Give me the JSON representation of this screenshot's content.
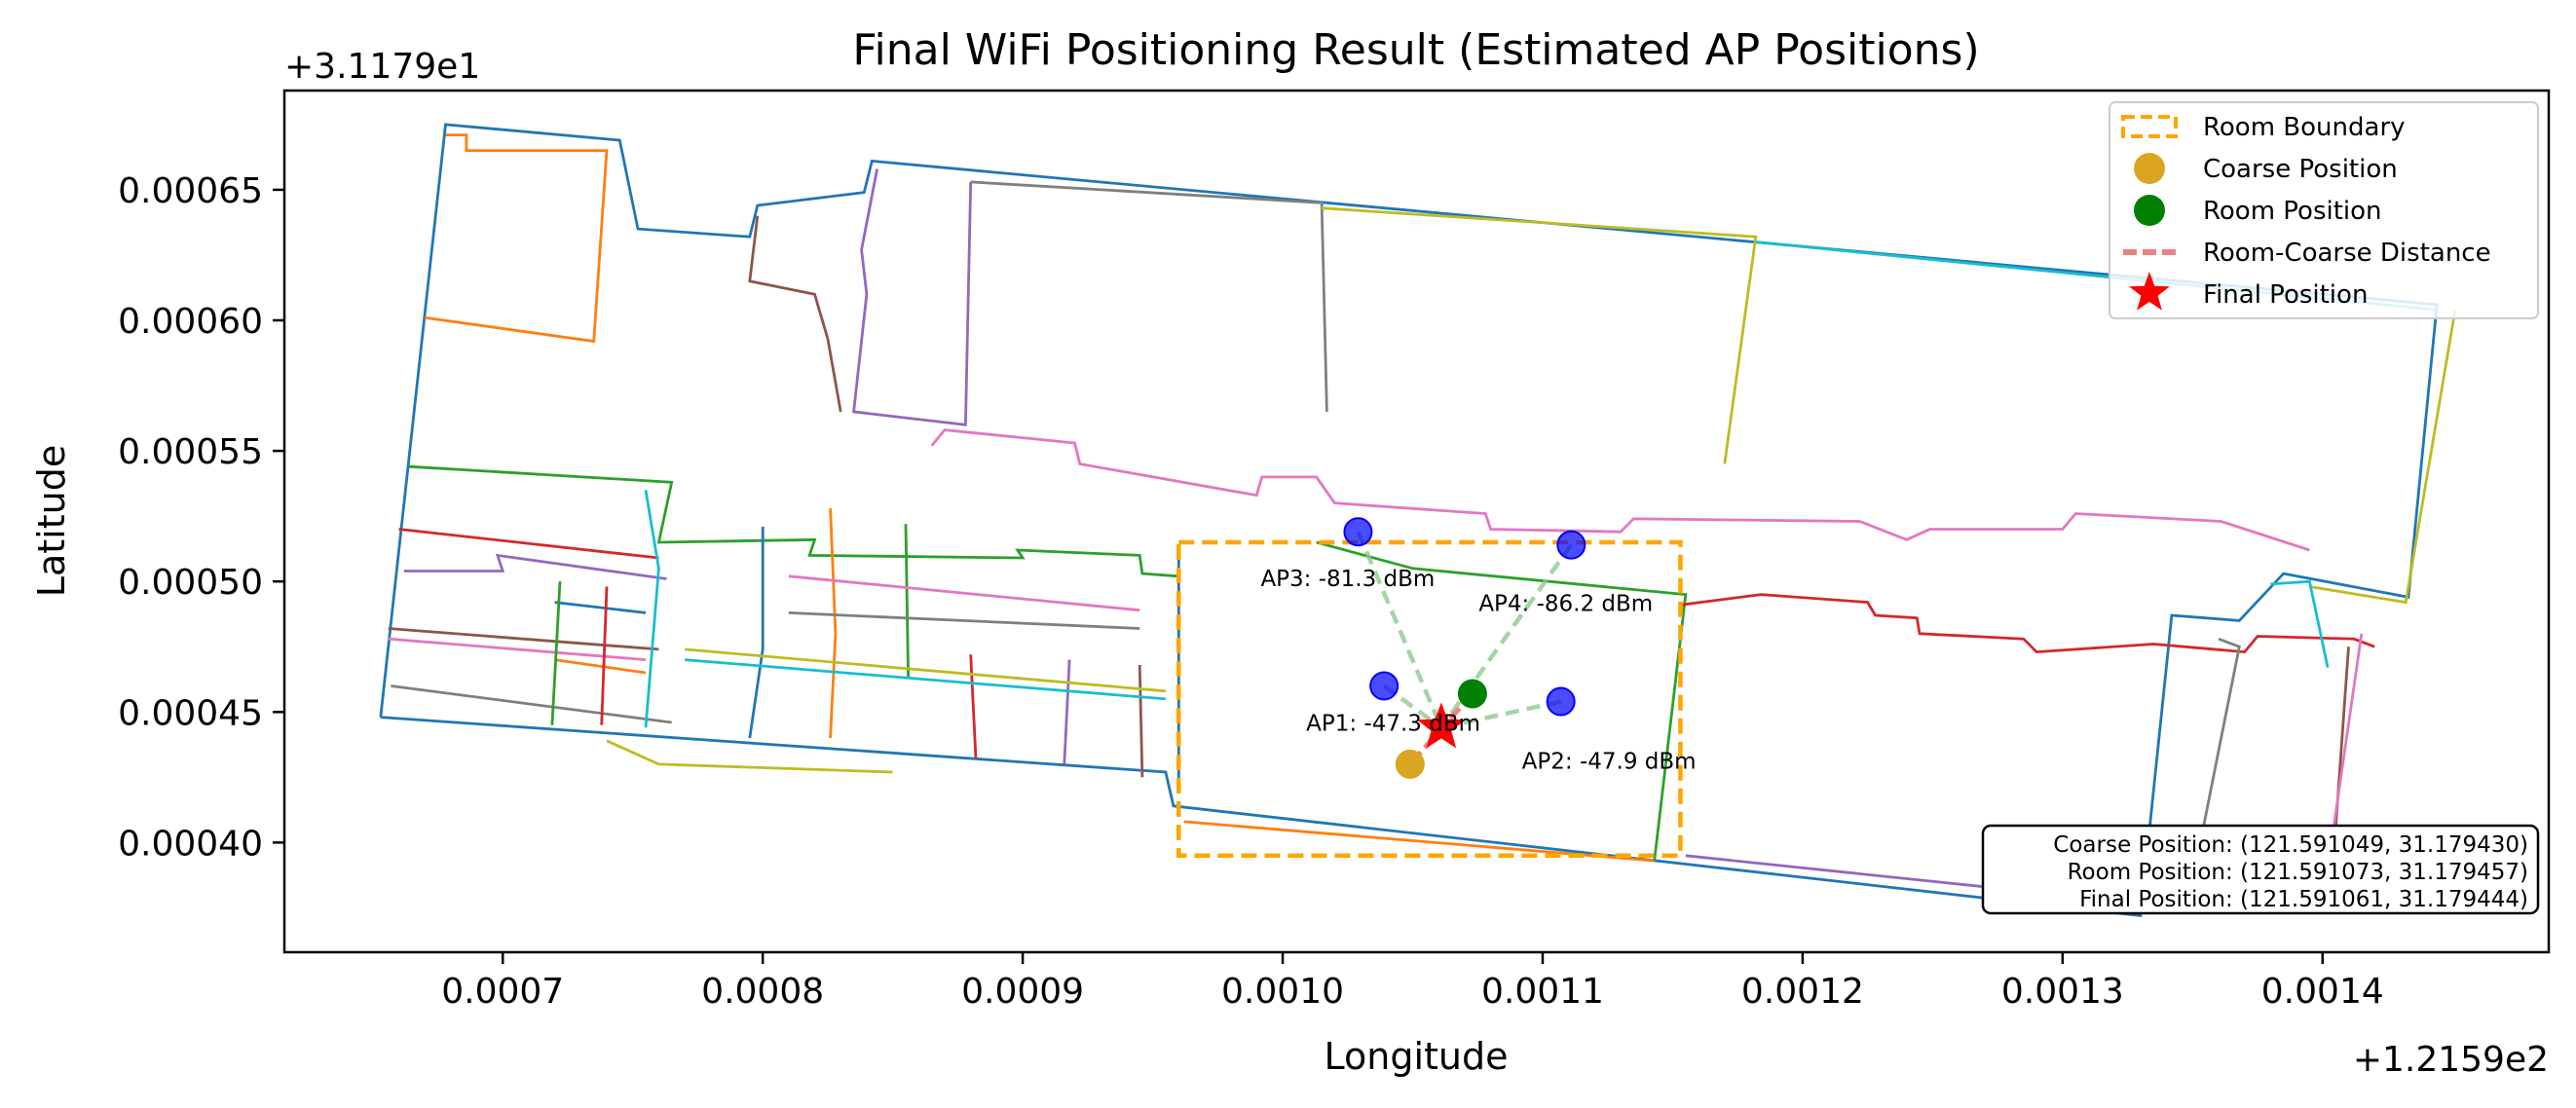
{
  "chart_data": {
    "type": "scatter",
    "title": "Final WiFi Positioning Result (Estimated AP Positions)",
    "xlabel": "Longitude",
    "ylabel": "Latitude",
    "x_offset_label": "+1.2159e2",
    "y_offset_label": "+3.1179e1",
    "x_offset": 121.59,
    "y_offset": 31.179,
    "xlim": [
      0.000616,
      0.001487
    ],
    "ylim": [
      0.000358,
      0.000688
    ],
    "x_ticks": [
      0.0007,
      0.0008,
      0.0009,
      0.001,
      0.0011,
      0.0012,
      0.0013,
      0.0014
    ],
    "x_tick_labels": [
      "0.0007",
      "0.0008",
      "0.0009",
      "0.0010",
      "0.0011",
      "0.0012",
      "0.0013",
      "0.0014"
    ],
    "y_ticks": [
      0.0004,
      0.00045,
      0.0005,
      0.00055,
      0.0006,
      0.00065
    ],
    "y_tick_labels": [
      "0.00040",
      "0.00045",
      "0.00050",
      "0.00055",
      "0.00060",
      "0.00065"
    ],
    "grid": false,
    "legend_position": "top-right",
    "legend": [
      {
        "label": "Room Boundary",
        "marker": "dashed-rect",
        "color": "#FFA500"
      },
      {
        "label": "Coarse Position",
        "marker": "circle",
        "color": "#DAA520"
      },
      {
        "label": "Room Position",
        "marker": "circle",
        "color": "#008000"
      },
      {
        "label": "Room-Coarse Distance",
        "marker": "dashed-line",
        "color": "#F08080"
      },
      {
        "label": "Final Position",
        "marker": "star",
        "color": "#FF0000"
      }
    ],
    "room_boundary": {
      "x": [
        0.00096,
        0.001153
      ],
      "y": [
        0.000395,
        0.000515
      ],
      "color": "#FFA500"
    },
    "coarse_position": {
      "x": 0.001049,
      "y": 0.00043,
      "color": "#DAA520"
    },
    "room_position": {
      "x": 0.001073,
      "y": 0.000457,
      "color": "#008000"
    },
    "final_position": {
      "x": 0.001061,
      "y": 0.000444,
      "color": "#FF0000"
    },
    "access_points": [
      {
        "label": "AP1: -47.3 dBm",
        "x": 0.001039,
        "y": 0.00046
      },
      {
        "label": "AP2: -47.9 dBm",
        "x": 0.001107,
        "y": 0.000454
      },
      {
        "label": "AP3: -81.3 dBm",
        "x": 0.001029,
        "y": 0.000519
      },
      {
        "label": "AP4: -86.2 dBm",
        "x": 0.001111,
        "y": 0.000514
      }
    ],
    "ap_color": "#0000FF",
    "ap_link_color": "#8FC98F",
    "info_box": [
      "Coarse Position: (121.591049, 31.179430)",
      "Room Position: (121.591073, 31.179457)",
      "Final Position: (121.591061, 31.179444)"
    ],
    "floorplan_colors": [
      "#1f77b4",
      "#ff7f0e",
      "#2ca02c",
      "#d62728",
      "#9467bd",
      "#8c564b",
      "#e377c2",
      "#7f7f7f",
      "#bcbd22",
      "#17becf"
    ],
    "floorplan": [
      {
        "points": [
          [
            0.000653,
            0.000448
          ],
          [
            0.000678,
            0.000675
          ],
          [
            0.000745,
            0.000669
          ],
          [
            0.000752,
            0.000635
          ],
          [
            0.000795,
            0.000632
          ],
          [
            0.000798,
            0.000644
          ],
          [
            0.000839,
            0.000649
          ],
          [
            0.000842,
            0.000661
          ],
          [
            0.001444,
            0.000606
          ],
          [
            0.001433,
            0.000494
          ],
          [
            0.001385,
            0.000503
          ],
          [
            0.001368,
            0.000485
          ],
          [
            0.001342,
            0.000487
          ],
          [
            0.00133,
            0.000372
          ],
          [
            0.000958,
            0.000414
          ],
          [
            0.000955,
            0.000427
          ],
          [
            0.000653,
            0.000448
          ]
        ]
      },
      {
        "points": [
          [
            0.000678,
            0.000671
          ],
          [
            0.000686,
            0.000671
          ],
          [
            0.000686,
            0.000665
          ],
          [
            0.00074,
            0.000665
          ],
          [
            0.000735,
            0.000592
          ],
          [
            0.00067,
            0.000601
          ]
        ]
      },
      {
        "points": [
          [
            0.000664,
            0.000544
          ],
          [
            0.000765,
            0.000538
          ],
          [
            0.00076,
            0.000515
          ],
          [
            0.00082,
            0.000516
          ],
          [
            0.000818,
            0.00051
          ],
          [
            0.0009,
            0.000509
          ],
          [
            0.000898,
            0.000512
          ],
          [
            0.000945,
            0.00051
          ],
          [
            0.000946,
            0.000503
          ],
          [
            0.00096,
            0.000502
          ]
        ]
      },
      {
        "points": [
          [
            0.00066,
            0.00052
          ],
          [
            0.00076,
            0.000509
          ]
        ]
      },
      {
        "points": [
          [
            0.000662,
            0.000504
          ],
          [
            0.0007,
            0.000504
          ],
          [
            0.000698,
            0.00051
          ],
          [
            0.000763,
            0.000501
          ]
        ]
      },
      {
        "points": [
          [
            0.000656,
            0.000482
          ],
          [
            0.00076,
            0.000474
          ]
        ]
      },
      {
        "points": [
          [
            0.000656,
            0.000478
          ],
          [
            0.000755,
            0.00047
          ]
        ]
      },
      {
        "points": [
          [
            0.000657,
            0.00046
          ],
          [
            0.000765,
            0.000446
          ]
        ]
      },
      {
        "points": [
          [
            0.00074,
            0.000439
          ],
          [
            0.00076,
            0.00043
          ],
          [
            0.00085,
            0.000427
          ]
        ]
      },
      {
        "points": [
          [
            0.000755,
            0.000535
          ],
          [
            0.00076,
            0.000505
          ],
          [
            0.000755,
            0.000444
          ]
        ]
      },
      {
        "points": [
          [
            0.0008,
            0.000521
          ],
          [
            0.0008,
            0.000474
          ],
          [
            0.000795,
            0.00044
          ]
        ]
      },
      {
        "points": [
          [
            0.000826,
            0.000528
          ],
          [
            0.000828,
            0.00048
          ],
          [
            0.000826,
            0.00044
          ]
        ]
      },
      {
        "points": [
          [
            0.000855,
            0.000522
          ],
          [
            0.000856,
            0.000463
          ]
        ]
      },
      {
        "points": [
          [
            0.00088,
            0.000472
          ],
          [
            0.000882,
            0.000432
          ]
        ]
      },
      {
        "points": [
          [
            0.000918,
            0.00047
          ],
          [
            0.000916,
            0.00043
          ]
        ]
      },
      {
        "points": [
          [
            0.000945,
            0.000468
          ],
          [
            0.000946,
            0.000425
          ]
        ]
      },
      {
        "points": [
          [
            0.00081,
            0.000502
          ],
          [
            0.000945,
            0.000489
          ]
        ]
      },
      {
        "points": [
          [
            0.00081,
            0.000488
          ],
          [
            0.000945,
            0.000482
          ]
        ]
      },
      {
        "points": [
          [
            0.00077,
            0.000474
          ],
          [
            0.000955,
            0.000458
          ]
        ]
      },
      {
        "points": [
          [
            0.00077,
            0.00047
          ],
          [
            0.000955,
            0.000455
          ]
        ]
      },
      {
        "points": [
          [
            0.00072,
            0.000492
          ],
          [
            0.000755,
            0.000488
          ]
        ]
      },
      {
        "points": [
          [
            0.00072,
            0.00047
          ],
          [
            0.000755,
            0.000465
          ]
        ]
      },
      {
        "points": [
          [
            0.000719,
            0.000445
          ],
          [
            0.000722,
            0.0005
          ]
        ]
      },
      {
        "points": [
          [
            0.000738,
            0.000445
          ],
          [
            0.00074,
            0.000498
          ]
        ]
      },
      {
        "points": [
          [
            0.000844,
            0.000658
          ],
          [
            0.000838,
            0.000627
          ],
          [
            0.00084,
            0.00061
          ],
          [
            0.000835,
            0.000565
          ],
          [
            0.000878,
            0.00056
          ],
          [
            0.00088,
            0.000653
          ]
        ]
      },
      {
        "points": [
          [
            0.000798,
            0.00064
          ],
          [
            0.000795,
            0.000615
          ],
          [
            0.00082,
            0.00061
          ],
          [
            0.000825,
            0.000593
          ],
          [
            0.00083,
            0.000565
          ]
        ]
      },
      {
        "points": [
          [
            0.000865,
            0.000552
          ],
          [
            0.00087,
            0.000558
          ],
          [
            0.00092,
            0.000553
          ],
          [
            0.000922,
            0.000545
          ],
          [
            0.00099,
            0.000533
          ],
          [
            0.000992,
            0.00054
          ],
          [
            0.001013,
            0.00054
          ],
          [
            0.00102,
            0.00053
          ],
          [
            0.001078,
            0.000526
          ],
          [
            0.00108,
            0.00052
          ],
          [
            0.00113,
            0.000519
          ],
          [
            0.001135,
            0.000524
          ],
          [
            0.001222,
            0.000523
          ],
          [
            0.00124,
            0.000516
          ],
          [
            0.001249,
            0.00052
          ],
          [
            0.0013,
            0.00052
          ],
          [
            0.001305,
            0.000526
          ],
          [
            0.001361,
            0.000523
          ],
          [
            0.001395,
            0.000512
          ]
        ]
      },
      {
        "points": [
          [
            0.00088,
            0.000653
          ],
          [
            0.001015,
            0.000645
          ],
          [
            0.001017,
            0.000565
          ]
        ]
      },
      {
        "points": [
          [
            0.001015,
            0.000643
          ],
          [
            0.001182,
            0.000632
          ],
          [
            0.00117,
            0.000545
          ]
        ]
      },
      {
        "points": [
          [
            0.001182,
            0.00063
          ],
          [
            0.001444,
            0.000604
          ]
        ]
      },
      {
        "points": [
          [
            0.00096,
            0.000514
          ],
          [
            0.00096,
            0.000422
          ]
        ]
      },
      {
        "points": [
          [
            0.000962,
            0.000408
          ],
          [
            0.001143,
            0.000393
          ]
        ]
      },
      {
        "points": [
          [
            0.001143,
            0.000393
          ],
          [
            0.001155,
            0.000495
          ],
          [
            0.00105,
            0.000505
          ],
          [
            0.001013,
            0.000515
          ]
        ]
      },
      {
        "points": [
          [
            0.001153,
            0.000491
          ],
          [
            0.001184,
            0.000495
          ],
          [
            0.001225,
            0.000492
          ],
          [
            0.001228,
            0.000487
          ],
          [
            0.001244,
            0.000486
          ],
          [
            0.001245,
            0.00048
          ],
          [
            0.001285,
            0.000478
          ],
          [
            0.00129,
            0.000473
          ],
          [
            0.001335,
            0.000476
          ],
          [
            0.00137,
            0.000473
          ],
          [
            0.001375,
            0.000479
          ],
          [
            0.001412,
            0.000478
          ],
          [
            0.00142,
            0.000475
          ]
        ]
      },
      {
        "points": [
          [
            0.001155,
            0.000395
          ],
          [
            0.00128,
            0.000382
          ],
          [
            0.00133,
            0.000378
          ]
        ]
      },
      {
        "points": [
          [
            0.00141,
            0.000475
          ],
          [
            0.001405,
            0.000405
          ]
        ]
      },
      {
        "points": [
          [
            0.001415,
            0.00048
          ],
          [
            0.001402,
            0.00039
          ]
        ]
      },
      {
        "points": [
          [
            0.00136,
            0.000478
          ],
          [
            0.001368,
            0.000475
          ],
          [
            0.00135,
            0.000385
          ]
        ]
      },
      {
        "points": [
          [
            0.001451,
            0.000604
          ],
          [
            0.001432,
            0.000492
          ],
          [
            0.001395,
            0.000498
          ]
        ]
      },
      {
        "points": [
          [
            0.00138,
            0.000499
          ],
          [
            0.001395,
            0.0005
          ],
          [
            0.001402,
            0.000467
          ]
        ]
      }
    ]
  }
}
